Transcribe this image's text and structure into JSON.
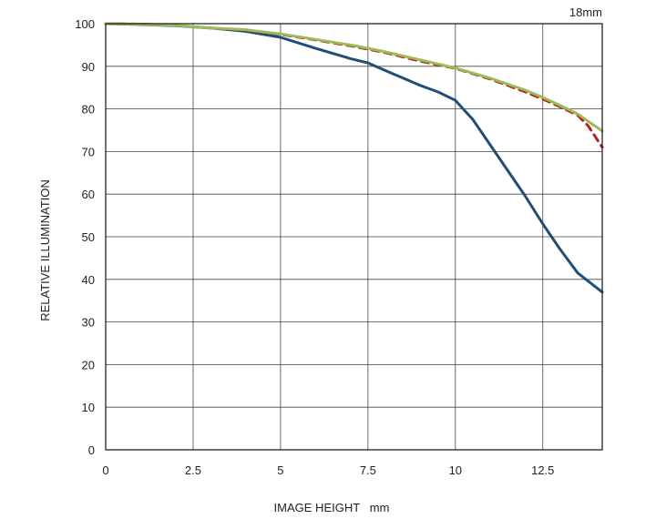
{
  "chart_data": {
    "type": "line",
    "focal_label": "18mm",
    "xlabel": "IMAGE HEIGHT   mm",
    "ylabel": "RELATIVE ILLUMINATION",
    "xlim": [
      0,
      14.2
    ],
    "ylim": [
      0,
      100
    ],
    "x_ticks": [
      0,
      2.5,
      5,
      7.5,
      10,
      12.5
    ],
    "x_tick_labels": [
      "0",
      "2.5",
      "5",
      "7.5",
      "10",
      "12.5"
    ],
    "y_ticks": [
      0,
      10,
      20,
      30,
      40,
      50,
      60,
      70,
      80,
      90,
      100
    ],
    "y_tick_labels": [
      "0",
      "10",
      "20",
      "30",
      "40",
      "50",
      "60",
      "70",
      "80",
      "90",
      "100"
    ],
    "grid": true,
    "series": [
      {
        "color": "#1f4e79",
        "dash": "",
        "points": [
          [
            0,
            100
          ],
          [
            1,
            99.8
          ],
          [
            2,
            99.5
          ],
          [
            3,
            99
          ],
          [
            4,
            98.2
          ],
          [
            5,
            96.8
          ],
          [
            6,
            94.2
          ],
          [
            7,
            91.8
          ],
          [
            7.5,
            90.8
          ],
          [
            8,
            89
          ],
          [
            9,
            85.5
          ],
          [
            9.5,
            84
          ],
          [
            10,
            82
          ],
          [
            10.5,
            77.5
          ],
          [
            11,
            71.5
          ],
          [
            11.5,
            65.5
          ],
          [
            12,
            59.5
          ],
          [
            12.5,
            53
          ],
          [
            13,
            47
          ],
          [
            13.5,
            41.5
          ],
          [
            14.2,
            37
          ]
        ]
      },
      {
        "color": "#b22222",
        "dash": "8,6",
        "points": [
          [
            0,
            100
          ],
          [
            1,
            99.9
          ],
          [
            2,
            99.6
          ],
          [
            3,
            99
          ],
          [
            4,
            98.5
          ],
          [
            5,
            97.5
          ],
          [
            6,
            96.2
          ],
          [
            7,
            94.8
          ],
          [
            8,
            93.2
          ],
          [
            9,
            91.2
          ],
          [
            10,
            89.5
          ],
          [
            11,
            87
          ],
          [
            12,
            84
          ],
          [
            12.5,
            82.3
          ],
          [
            13,
            80.5
          ],
          [
            13.5,
            78.5
          ],
          [
            13.8,
            76
          ],
          [
            14.2,
            71
          ]
        ]
      },
      {
        "color": "#9bbb59",
        "dash": "",
        "points": [
          [
            0,
            100
          ],
          [
            1,
            99.9
          ],
          [
            2,
            99.6
          ],
          [
            3,
            99
          ],
          [
            4,
            98.6
          ],
          [
            5,
            97.6
          ],
          [
            6,
            96.3
          ],
          [
            7,
            95
          ],
          [
            8,
            93.4
          ],
          [
            9,
            91.5
          ],
          [
            10,
            89.6
          ],
          [
            11,
            87.2
          ],
          [
            12,
            84.4
          ],
          [
            12.5,
            82.7
          ],
          [
            13,
            80.8
          ],
          [
            13.5,
            78.8
          ],
          [
            14.2,
            74.8
          ]
        ]
      }
    ]
  }
}
